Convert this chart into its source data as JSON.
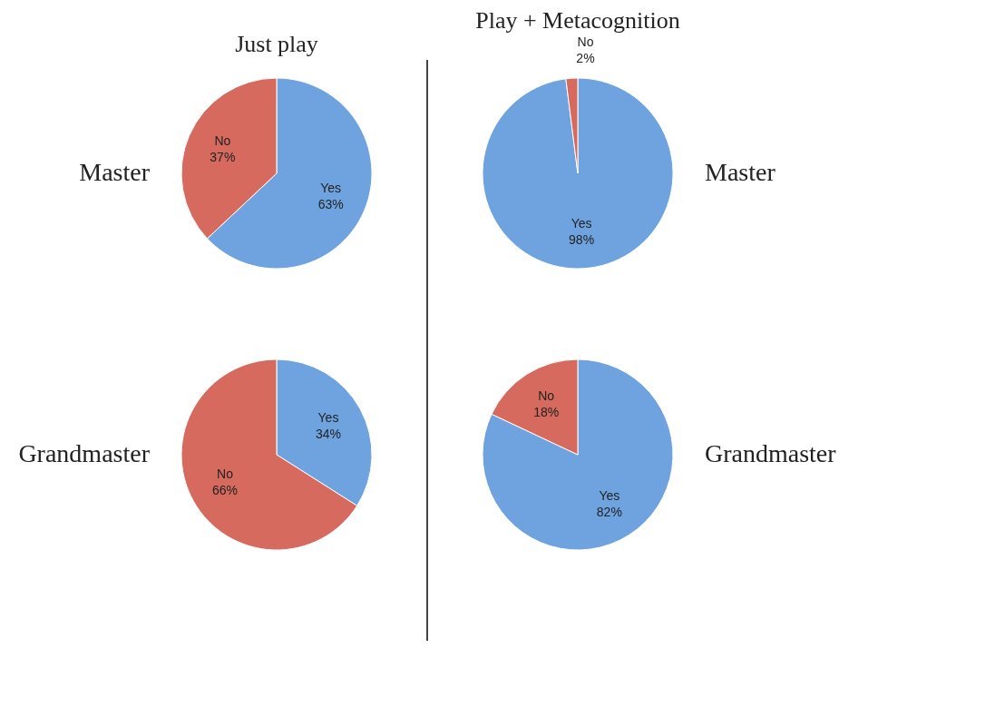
{
  "chart_data": [
    {
      "type": "pie",
      "title": "Just play",
      "ylabel": "Master",
      "categories": [
        "Yes",
        "No"
      ],
      "values": [
        63,
        37
      ],
      "colors": [
        "#6fa3e0",
        "#d66a5e"
      ],
      "value_labels": [
        "63%",
        "37%"
      ]
    },
    {
      "type": "pie",
      "title": "Play + Metacognition",
      "ylabel": "Master",
      "categories": [
        "Yes",
        "No"
      ],
      "values": [
        98,
        2
      ],
      "colors": [
        "#6fa3e0",
        "#d66a5e"
      ],
      "value_labels": [
        "98%",
        "2%"
      ]
    },
    {
      "type": "pie",
      "ylabel": "Grandmaster",
      "categories": [
        "Yes",
        "No"
      ],
      "values": [
        34,
        66
      ],
      "colors": [
        "#6fa3e0",
        "#d66a5e"
      ],
      "value_labels": [
        "34%",
        "66%"
      ]
    },
    {
      "type": "pie",
      "ylabel": "Grandmaster",
      "categories": [
        "Yes",
        "No"
      ],
      "values": [
        82,
        18
      ],
      "colors": [
        "#6fa3e0",
        "#d66a5e"
      ],
      "value_labels": [
        "82%",
        "18%"
      ]
    }
  ]
}
